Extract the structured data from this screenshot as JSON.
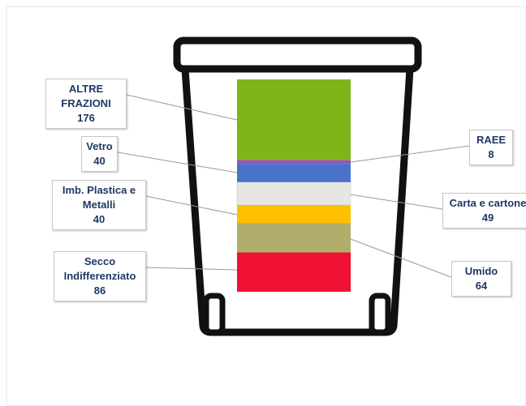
{
  "chart_data": {
    "type": "stacked-bar",
    "series": [
      {
        "name": "Secco Indifferenziato",
        "color": "#ee1131",
        "values": [
          86
        ]
      },
      {
        "name": "Umido",
        "color": "#b1ad6b",
        "values": [
          64
        ]
      },
      {
        "name": "Imb. Plastica e Metalli",
        "color": "#ffc000",
        "values": [
          40
        ]
      },
      {
        "name": "Carta e cartone",
        "color": "#e6e6e3",
        "values": [
          49
        ]
      },
      {
        "name": "Vetro",
        "color": "#4a72c8",
        "values": [
          40
        ]
      },
      {
        "name": "RAEE",
        "color": "#9b4fc0",
        "values": [
          8
        ]
      },
      {
        "name": "ALTRE FRAZIONI",
        "color": "#7fb519",
        "values": [
          176
        ]
      }
    ]
  }
}
